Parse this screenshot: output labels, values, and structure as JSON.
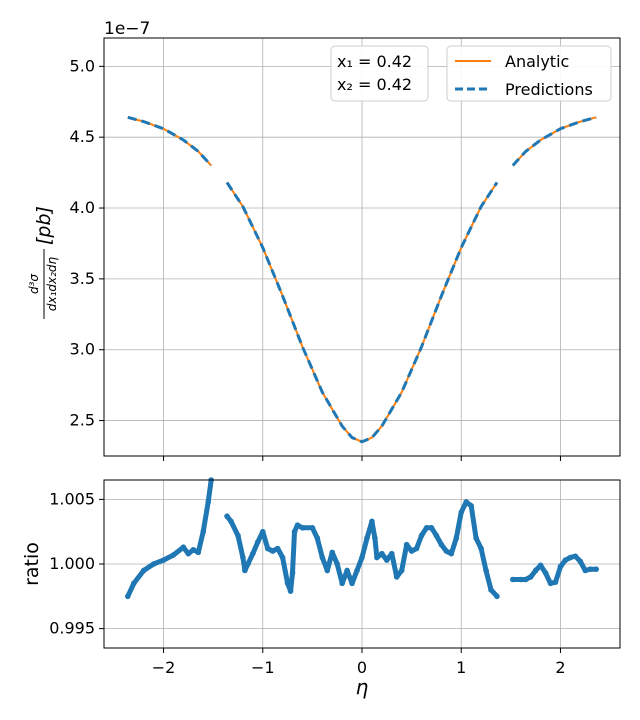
{
  "chart_data": [
    {
      "type": "line",
      "offset_label": "1e−7",
      "xlabel": "η",
      "ylabel_fraction": {
        "numerator": "d³σ",
        "denominator": "dx₁dx₂dη"
      },
      "ylabel_unit": "[pb]",
      "xlim": [
        -2.6,
        2.6
      ],
      "ylim": [
        2.25,
        5.2
      ],
      "xticks": [
        -2,
        -1,
        0,
        1,
        2
      ],
      "xtick_labels": [
        "−2",
        "−1",
        "0",
        "1",
        "2"
      ],
      "yticks": [
        2.5,
        3.0,
        3.5,
        4.0,
        4.5,
        5.0
      ],
      "ytick_labels": [
        "2.5",
        "3.0",
        "3.5",
        "4.0",
        "4.5",
        "5.0"
      ],
      "grid": true,
      "legend_position": "top-right",
      "annotation": {
        "x1": "x₁ = 0.42",
        "x2": "x₂ = 0.42"
      },
      "series": [
        {
          "name": "Analytic",
          "color": "#ff7f0e",
          "style": "solid",
          "segments": [
            {
              "x": [
                -2.36,
                -2.2,
                -2.0,
                -1.8,
                -1.65,
                -1.52
              ],
              "y": [
                4.64,
                4.61,
                4.56,
                4.48,
                4.4,
                4.3
              ]
            },
            {
              "x": [
                -1.36,
                -1.2,
                -1.0,
                -0.8,
                -0.6,
                -0.4,
                -0.2,
                -0.1,
                0.0,
                0.1,
                0.2,
                0.4,
                0.6,
                0.8,
                1.0,
                1.2,
                1.36
              ],
              "y": [
                4.18,
                4.01,
                3.72,
                3.38,
                3.02,
                2.7,
                2.46,
                2.38,
                2.35,
                2.38,
                2.46,
                2.7,
                3.02,
                3.38,
                3.72,
                4.01,
                4.18
              ]
            },
            {
              "x": [
                1.52,
                1.65,
                1.8,
                2.0,
                2.2,
                2.36
              ],
              "y": [
                4.3,
                4.4,
                4.48,
                4.56,
                4.61,
                4.64
              ]
            }
          ]
        },
        {
          "name": "Predictions",
          "color": "#1f77b4",
          "style": "dashed",
          "segments": [
            {
              "x": [
                -2.36,
                -2.2,
                -2.0,
                -1.8,
                -1.65,
                -1.52
              ],
              "y": [
                4.64,
                4.61,
                4.56,
                4.48,
                4.4,
                4.3
              ]
            },
            {
              "x": [
                -1.36,
                -1.2,
                -1.0,
                -0.8,
                -0.6,
                -0.4,
                -0.2,
                -0.1,
                0.0,
                0.1,
                0.2,
                0.4,
                0.6,
                0.8,
                1.0,
                1.2,
                1.36
              ],
              "y": [
                4.18,
                4.01,
                3.72,
                3.38,
                3.02,
                2.7,
                2.46,
                2.38,
                2.35,
                2.38,
                2.46,
                2.7,
                3.02,
                3.38,
                3.72,
                4.01,
                4.18
              ]
            },
            {
              "x": [
                1.52,
                1.65,
                1.8,
                2.0,
                2.2,
                2.36
              ],
              "y": [
                4.3,
                4.4,
                4.48,
                4.56,
                4.61,
                4.64
              ]
            }
          ]
        }
      ]
    },
    {
      "type": "scatter",
      "xlabel": "η",
      "ylabel": "ratio",
      "xlim": [
        -2.6,
        2.6
      ],
      "ylim": [
        0.9935,
        1.0065
      ],
      "xticks": [
        -2,
        -1,
        0,
        1,
        2
      ],
      "xtick_labels": [
        "−2",
        "−1",
        "0",
        "1",
        "2"
      ],
      "yticks": [
        0.995,
        1.0,
        1.005
      ],
      "ytick_labels": [
        "0.995",
        "1.000",
        "1.005"
      ],
      "grid": true,
      "series": [
        {
          "color": "#1f77b4",
          "segments": [
            {
              "x": [
                -2.36,
                -2.3,
                -2.2,
                -2.1,
                -2.0,
                -1.9,
                -1.8,
                -1.75,
                -1.7,
                -1.65,
                -1.6,
                -1.55,
                -1.52
              ],
              "y": [
                0.9975,
                0.9985,
                0.9995,
                1.0,
                1.0003,
                1.0007,
                1.0013,
                1.0008,
                1.0011,
                1.0009,
                1.0025,
                1.0048,
                1.0065
              ]
            },
            {
              "x": [
                -1.36,
                -1.32,
                -1.25,
                -1.2,
                -1.18,
                -1.15,
                -1.1,
                -1.05,
                -1.0,
                -0.95,
                -0.9,
                -0.85,
                -0.8,
                -0.75,
                -0.72,
                -0.7,
                -0.68,
                -0.65,
                -0.6,
                -0.5,
                -0.45,
                -0.4,
                -0.35,
                -0.3,
                -0.25,
                -0.2,
                -0.15,
                -0.1,
                -0.05,
                0.0,
                0.05,
                0.1,
                0.13,
                0.15,
                0.2,
                0.25,
                0.3,
                0.35,
                0.4,
                0.45,
                0.5,
                0.55,
                0.6,
                0.65,
                0.7,
                0.75,
                0.8,
                0.85,
                0.9,
                0.95,
                1.0,
                1.05,
                1.1,
                1.15,
                1.2,
                1.25,
                1.3,
                1.36
              ],
              "y": [
                1.0037,
                1.0033,
                1.0022,
                1.0005,
                0.9995,
                1.0,
                1.0008,
                1.0017,
                1.0025,
                1.0012,
                1.001,
                1.0012,
                1.0005,
                0.9985,
                0.9979,
                0.9993,
                1.0025,
                1.003,
                1.0028,
                1.0028,
                1.002,
                1.0005,
                0.9995,
                1.0009,
                1.0,
                0.9985,
                0.9995,
                0.9985,
                0.9995,
                1.0005,
                1.002,
                1.0033,
                1.002,
                1.0005,
                1.0008,
                1.0003,
                1.0008,
                0.999,
                0.9995,
                1.0015,
                1.001,
                1.0012,
                1.0022,
                1.0028,
                1.0028,
                1.0022,
                1.0015,
                1.001,
                1.0008,
                1.002,
                1.004,
                1.0048,
                1.0045,
                1.002,
                1.0012,
                0.9995,
                0.998,
                0.9975
              ]
            },
            {
              "x": [
                1.52,
                1.6,
                1.65,
                1.7,
                1.75,
                1.8,
                1.85,
                1.9,
                1.95,
                2.0,
                2.05,
                2.1,
                2.15,
                2.2,
                2.25,
                2.3,
                2.36
              ],
              "y": [
                0.9988,
                0.9988,
                0.9988,
                0.999,
                0.9995,
                0.9999,
                0.9993,
                0.9985,
                0.9986,
                0.9998,
                1.0003,
                1.0005,
                1.0006,
                1.0002,
                0.9995,
                0.9996,
                0.9996
              ]
            }
          ]
        }
      ]
    }
  ]
}
